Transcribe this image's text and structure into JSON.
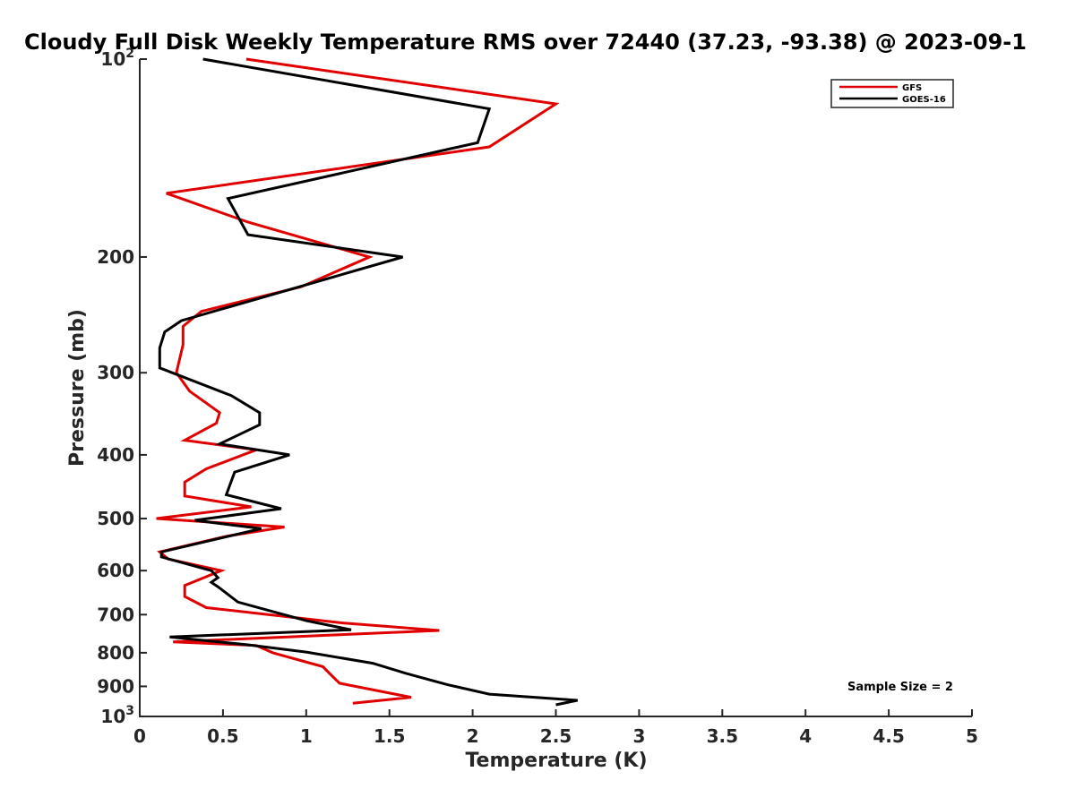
{
  "chart_data": {
    "type": "line",
    "title": "Cloudy Full Disk Weekly Temperature RMS over 72440 (37.23, -93.38) @ 2023-09-1",
    "xlabel": "Temperature (K)",
    "ylabel": "Pressure (mb)",
    "xlim": [
      0,
      5
    ],
    "ylim": [
      100,
      1000
    ],
    "y_scale": "log",
    "y_reversed": true,
    "x_ticks": [
      "0",
      "0.5",
      "1",
      "1.5",
      "2",
      "2.5",
      "3",
      "3.5",
      "4",
      "4.5",
      "5"
    ],
    "y_ticks": [
      {
        "value": 100,
        "label": "10",
        "exp": "2"
      },
      {
        "value": 200,
        "label": "200"
      },
      {
        "value": 300,
        "label": "300"
      },
      {
        "value": 400,
        "label": "400"
      },
      {
        "value": 500,
        "label": "500"
      },
      {
        "value": 600,
        "label": "600"
      },
      {
        "value": 700,
        "label": "700"
      },
      {
        "value": 800,
        "label": "800"
      },
      {
        "value": 900,
        "label": "900"
      },
      {
        "value": 1000,
        "label": "10",
        "exp": "3"
      }
    ],
    "legend_position": "top-right",
    "grid": false,
    "annotation": "Sample Size = 2",
    "series": [
      {
        "name": "GFS",
        "color": "#e00000",
        "points": [
          [
            0.64,
            100
          ],
          [
            2.5,
            117
          ],
          [
            2.1,
            136
          ],
          [
            0.16,
            160
          ],
          [
            0.65,
            177
          ],
          [
            1.38,
            200
          ],
          [
            0.97,
            222
          ],
          [
            0.37,
            242
          ],
          [
            0.26,
            255
          ],
          [
            0.26,
            272
          ],
          [
            0.22,
            300
          ],
          [
            0.3,
            320
          ],
          [
            0.48,
            345
          ],
          [
            0.46,
            358
          ],
          [
            0.27,
            380
          ],
          [
            0.7,
            393
          ],
          [
            0.4,
            420
          ],
          [
            0.27,
            440
          ],
          [
            0.27,
            462
          ],
          [
            0.67,
            480
          ],
          [
            0.1,
            500
          ],
          [
            0.87,
            515
          ],
          [
            0.52,
            532
          ],
          [
            0.12,
            562
          ],
          [
            0.17,
            576
          ],
          [
            0.49,
            600
          ],
          [
            0.27,
            632
          ],
          [
            0.27,
            657
          ],
          [
            0.4,
            683
          ],
          [
            1.2,
            720
          ],
          [
            1.8,
            740
          ],
          [
            0.2,
            770
          ],
          [
            0.7,
            780
          ],
          [
            0.8,
            800
          ],
          [
            1.1,
            840
          ],
          [
            1.15,
            865
          ],
          [
            1.2,
            890
          ],
          [
            1.63,
            935
          ],
          [
            1.28,
            955
          ]
        ]
      },
      {
        "name": "GOES-16",
        "color": "#000000",
        "points": [
          [
            0.38,
            100
          ],
          [
            2.1,
            119
          ],
          [
            2.03,
            134
          ],
          [
            0.53,
            163
          ],
          [
            0.65,
            185
          ],
          [
            1.58,
            200
          ],
          [
            0.25,
            250
          ],
          [
            0.15,
            260
          ],
          [
            0.12,
            275
          ],
          [
            0.12,
            295
          ],
          [
            0.55,
            325
          ],
          [
            0.72,
            345
          ],
          [
            0.72,
            360
          ],
          [
            0.48,
            385
          ],
          [
            0.9,
            400
          ],
          [
            0.57,
            425
          ],
          [
            0.52,
            460
          ],
          [
            0.85,
            483
          ],
          [
            0.33,
            503
          ],
          [
            0.73,
            518
          ],
          [
            0.13,
            562
          ],
          [
            0.13,
            572
          ],
          [
            0.43,
            600
          ],
          [
            0.47,
            615
          ],
          [
            0.43,
            625
          ],
          [
            0.47,
            635
          ],
          [
            0.59,
            670
          ],
          [
            1.0,
            715
          ],
          [
            1.27,
            738
          ],
          [
            0.18,
            757
          ],
          [
            0.65,
            778
          ],
          [
            1.0,
            798
          ],
          [
            1.4,
            830
          ],
          [
            1.6,
            860
          ],
          [
            1.85,
            895
          ],
          [
            2.1,
            925
          ],
          [
            2.63,
            945
          ],
          [
            2.5,
            960
          ]
        ]
      }
    ]
  }
}
